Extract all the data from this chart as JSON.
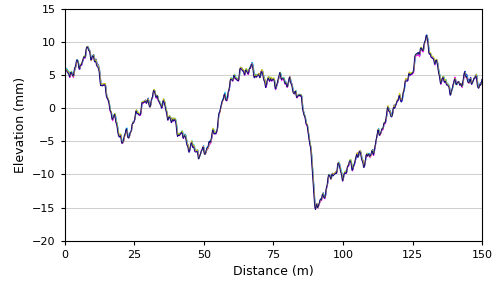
{
  "xlabel": "Distance (m)",
  "ylabel": "Elevation (mm)",
  "xlim": [
    0,
    150
  ],
  "ylim": [
    -20,
    15
  ],
  "yticks": [
    -20,
    -15,
    -10,
    -5,
    0,
    5,
    10,
    15
  ],
  "xticks": [
    0,
    25,
    50,
    75,
    100,
    125,
    150
  ],
  "line_colors": [
    "#0000CC",
    "#00CCFF",
    "#FF00FF",
    "#CCCC00",
    "#000080"
  ],
  "line_width": 0.7,
  "background_color": "#FFFFFF",
  "grid_color": "#BBBBBB",
  "figsize": [
    4.97,
    2.9
  ],
  "dpi": 100,
  "knots_x": [
    0,
    3,
    6,
    9,
    12,
    15,
    18,
    21,
    24,
    27,
    30,
    33,
    36,
    39,
    42,
    44,
    46,
    48,
    50,
    52,
    54,
    56,
    58,
    60,
    62,
    64,
    66,
    68,
    70,
    72,
    74,
    76,
    78,
    80,
    82,
    84,
    86,
    88,
    89,
    90,
    91,
    92,
    94,
    96,
    98,
    100,
    102,
    104,
    106,
    108,
    110,
    112,
    114,
    116,
    118,
    120,
    122,
    124,
    126,
    128,
    130,
    132,
    135,
    138,
    142,
    145,
    148,
    150
  ],
  "knots_y": [
    5,
    5.5,
    7,
    9,
    6,
    2,
    -2,
    -5,
    -3,
    0,
    1,
    2,
    0,
    -2,
    -4,
    -5,
    -6,
    -6.5,
    -7,
    -5,
    -4,
    0,
    2,
    4,
    5,
    5.5,
    6,
    5.5,
    5,
    4.5,
    4,
    4,
    4.5,
    4,
    3,
    2,
    0,
    -5,
    -9,
    -14,
    -15.5,
    -14,
    -12,
    -10,
    -9,
    -10,
    -9,
    -8,
    -7,
    -8,
    -7,
    -5,
    -3,
    -1,
    0,
    1,
    3,
    5,
    7,
    9,
    10,
    8,
    5,
    3,
    4,
    4.5,
    4,
    4
  ]
}
